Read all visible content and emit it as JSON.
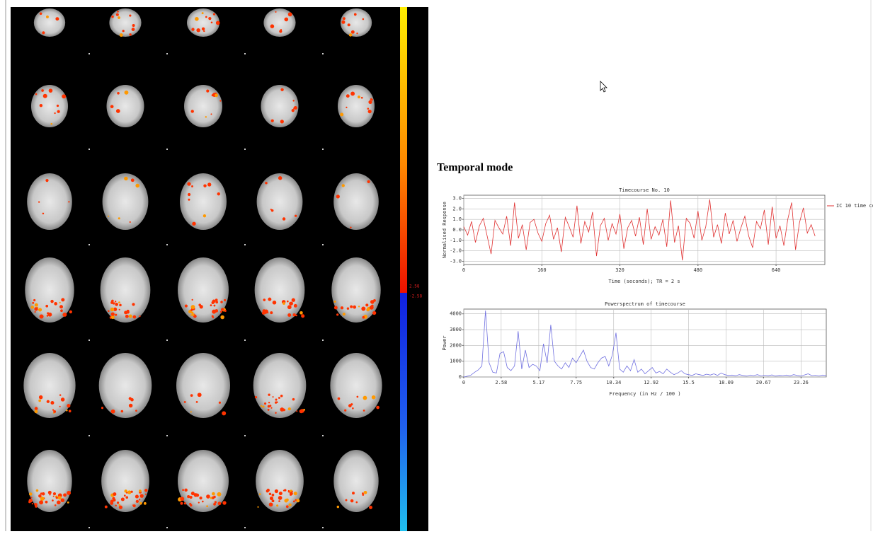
{
  "heading": "Temporal mode",
  "colorbar_labels": [
    "2.58",
    "-2.58"
  ],
  "chart_data": [
    {
      "type": "line",
      "title": "Timecourse No. 10",
      "ylabel": "Normalised Response",
      "xlabel": "Time (seconds); TR = 2 s",
      "x": [
        0,
        8,
        16,
        24,
        32,
        40,
        48,
        56,
        64,
        72,
        80,
        88,
        96,
        104,
        112,
        120,
        128,
        136,
        144,
        152,
        160,
        168,
        176,
        184,
        192,
        200,
        208,
        216,
        224,
        232,
        240,
        248,
        256,
        264,
        272,
        280,
        288,
        296,
        304,
        312,
        320,
        328,
        336,
        344,
        352,
        360,
        368,
        376,
        384,
        392,
        400,
        408,
        416,
        424,
        432,
        440,
        448,
        456,
        464,
        472,
        480,
        488,
        496,
        504,
        512,
        520,
        528,
        536,
        544,
        552,
        560,
        568,
        576,
        584,
        592,
        600,
        608,
        616,
        624,
        632,
        640,
        648,
        656,
        664,
        672,
        680,
        688,
        696,
        704,
        712,
        720
      ],
      "series": [
        {
          "name": "IC 10 time co",
          "color": "#e03030",
          "values": [
            0.3,
            -0.5,
            0.8,
            -1.2,
            0.4,
            1.1,
            -0.6,
            -2.3,
            0.9,
            0.2,
            -0.4,
            1.3,
            -1.5,
            2.6,
            -0.8,
            0.5,
            -1.9,
            0.7,
            1.0,
            -0.3,
            -1.1,
            0.6,
            1.4,
            -0.9,
            0.2,
            -2.1,
            1.2,
            0.3,
            -0.7,
            2.3,
            -1.3,
            0.8,
            -0.2,
            1.7,
            -2.5,
            0.4,
            1.1,
            -1.0,
            0.6,
            -0.4,
            1.5,
            -1.8,
            0.2,
            0.9,
            -0.6,
            1.2,
            -1.4,
            2.0,
            -0.9,
            0.3,
            -0.5,
            1.0,
            -1.6,
            2.8,
            -1.2,
            0.4,
            -2.9,
            1.1,
            0.6,
            -0.8,
            1.8,
            -1.0,
            0.3,
            2.9,
            -0.7,
            0.5,
            -1.3,
            1.6,
            -0.4,
            0.9,
            -1.1,
            0.2,
            1.3,
            -0.6,
            -1.7,
            0.8,
            0.1,
            1.9,
            -1.4,
            2.2,
            -0.8,
            0.4,
            -1.5,
            1.0,
            2.6,
            -1.9,
            0.7,
            2.1,
            -0.3,
            0.5,
            -0.6
          ]
        }
      ],
      "xlim": [
        0,
        740
      ],
      "xticks": [
        0,
        160,
        320,
        480,
        640
      ],
      "ylim": [
        -3.3,
        3.3
      ],
      "yticks": [
        {
          "value": 3,
          "label": "3.0"
        },
        {
          "value": 2,
          "label": "2.0"
        },
        {
          "value": 1,
          "label": "1.0"
        },
        {
          "value": 0,
          "label": "0.0"
        },
        {
          "value": -1,
          "label": "-1.0"
        },
        {
          "value": -2,
          "label": "-2.0"
        },
        {
          "value": -3,
          "label": "-3.0"
        }
      ],
      "grid": true,
      "legend": "right"
    },
    {
      "type": "line",
      "title": "Powerspectrum of timecourse",
      "ylabel": "Power",
      "xlabel": "Frequency (in Hz / 100 )",
      "x": [
        0,
        0.25,
        0.5,
        0.75,
        1,
        1.25,
        1.5,
        1.75,
        2,
        2.25,
        2.5,
        2.75,
        3,
        3.25,
        3.5,
        3.75,
        4,
        4.25,
        4.5,
        4.75,
        5,
        5.25,
        5.5,
        5.75,
        6,
        6.25,
        6.5,
        6.75,
        7,
        7.25,
        7.5,
        7.75,
        8,
        8.25,
        8.5,
        8.75,
        9,
        9.25,
        9.5,
        9.75,
        10,
        10.25,
        10.5,
        10.75,
        11,
        11.25,
        11.5,
        11.75,
        12,
        12.25,
        12.5,
        12.75,
        13,
        13.25,
        13.5,
        13.75,
        14,
        14.25,
        14.5,
        14.75,
        15,
        15.25,
        15.5,
        15.75,
        16,
        16.25,
        16.5,
        16.75,
        17,
        17.25,
        17.5,
        17.75,
        18,
        18.25,
        18.5,
        18.75,
        19,
        19.25,
        19.5,
        19.75,
        20,
        20.25,
        20.5,
        20.75,
        21,
        21.25,
        21.5,
        21.75,
        22,
        22.25,
        22.5,
        22.75,
        23,
        23.25,
        23.5,
        23.75,
        24,
        24.25,
        24.5,
        24.75,
        25
      ],
      "series": [
        {
          "color": "#7070e0",
          "values": [
            0,
            50,
            120,
            300,
            450,
            700,
            4200,
            900,
            300,
            250,
            1500,
            1600,
            600,
            400,
            700,
            2900,
            500,
            1700,
            600,
            800,
            700,
            400,
            2100,
            900,
            3300,
            1000,
            700,
            500,
            900,
            600,
            1200,
            900,
            1300,
            1700,
            1000,
            600,
            500,
            900,
            1200,
            1300,
            700,
            1400,
            2800,
            500,
            300,
            700,
            400,
            1100,
            300,
            500,
            200,
            400,
            600,
            250,
            350,
            200,
            500,
            300,
            150,
            250,
            400,
            200,
            150,
            100,
            200,
            150,
            100,
            180,
            120,
            200,
            100,
            250,
            150,
            100,
            120,
            80,
            150,
            100,
            60,
            120,
            90,
            150,
            70,
            110,
            80,
            130,
            60,
            100,
            90,
            120,
            70,
            150,
            100,
            60,
            130,
            200,
            90,
            110,
            70,
            120,
            80
          ]
        }
      ],
      "xlim": [
        0,
        25
      ],
      "xticks": [
        0,
        2.58,
        5.17,
        7.75,
        10.34,
        12.92,
        15.5,
        18.09,
        20.67,
        23.26
      ],
      "ylim": [
        0,
        4300
      ],
      "yticks": [
        0,
        1000,
        2000,
        3000,
        4000
      ],
      "grid": true
    }
  ]
}
